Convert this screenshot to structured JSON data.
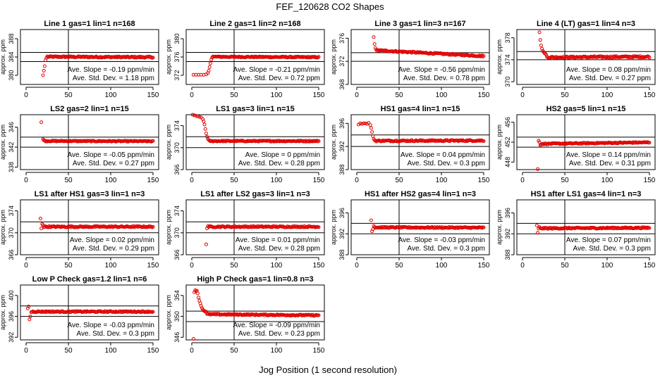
{
  "figure": {
    "title": "FEF_120628  CO2 Shapes",
    "xlabel": "Jog Position (1 second resolution)"
  },
  "chart_data": [
    {
      "type": "scatter",
      "title": "Line 1 gas=1 lin=1 n=168",
      "ylabel": "approx. ppm",
      "xlim": [
        0,
        150
      ],
      "ylim": [
        378,
        390
      ],
      "xticks": [
        0,
        50,
        100,
        150
      ],
      "yticks": [
        380,
        384,
        388
      ],
      "ref_lines_y": [
        385,
        383
      ],
      "ref_line_x": 50,
      "slope_text": "Ave. Slope =  -0.19  ppm/min",
      "std_text": "Ave. Std. Dev. =  1.18  ppm",
      "shape": {
        "x_start": 20,
        "x_end": 150,
        "level": 384,
        "transient": [
          [
            20,
            380
          ],
          [
            21,
            381
          ],
          [
            22,
            382
          ],
          [
            23,
            383.3
          ],
          [
            24,
            383.8
          ],
          [
            25,
            384.1
          ]
        ],
        "drift": -0.1,
        "noise": 0.15,
        "step": 1
      }
    },
    {
      "type": "scatter",
      "title": "Line 2 gas=1 lin=2 n=168",
      "ylabel": "approx. ppm",
      "xlim": [
        0,
        150
      ],
      "ylim": [
        370,
        382
      ],
      "xticks": [
        0,
        50,
        100,
        150
      ],
      "yticks": [
        372,
        376,
        380
      ],
      "ref_lines_y": [
        377,
        375
      ],
      "ref_line_x": 50,
      "slope_text": "Ave. Slope =  -0.21  ppm/min",
      "std_text": "Ave. Std. Dev. =  0.72  ppm",
      "shape": {
        "x_start": 2,
        "x_end": 150,
        "level": 376,
        "transient": [
          [
            2,
            372.1
          ],
          [
            5,
            372.1
          ],
          [
            8,
            372.1
          ],
          [
            11,
            372.1
          ],
          [
            14,
            372.1
          ],
          [
            17,
            372.2
          ],
          [
            19,
            372.5
          ],
          [
            20,
            373
          ],
          [
            21,
            373.8
          ],
          [
            22,
            374.6
          ],
          [
            23,
            375.4
          ],
          [
            24,
            375.9
          ],
          [
            25,
            376.1
          ]
        ],
        "drift": -0.1,
        "noise": 0.12,
        "step": 1
      }
    },
    {
      "type": "scatter",
      "title": "Line 3 gas=1 lin=3 n=167",
      "ylabel": "approx. ppm",
      "xlim": [
        0,
        150
      ],
      "ylim": [
        368,
        377.5
      ],
      "xticks": [
        0,
        50,
        100,
        150
      ],
      "yticks": [
        368,
        372,
        376
      ],
      "ref_lines_y": [
        373.5,
        372
      ],
      "ref_line_x": 50,
      "slope_text": "Ave. Slope =  -0.56  ppm/min",
      "std_text": "Ave. Std. Dev. =  0.78  ppm",
      "shape": {
        "x_start": 20,
        "x_end": 150,
        "level": 373.4,
        "transient": [
          [
            20,
            376.2
          ],
          [
            21,
            375
          ],
          [
            22,
            374.3
          ],
          [
            23,
            374
          ],
          [
            24,
            373.8
          ]
        ],
        "drift": -1.0,
        "noise": 0.12,
        "step": 1
      }
    },
    {
      "type": "scatter",
      "title": "Line 4 (LT) gas=1 lin=4 n=3",
      "ylabel": "approx. ppm",
      "xlim": [
        0,
        150
      ],
      "ylim": [
        369.5,
        379.5
      ],
      "xticks": [
        0,
        50,
        100,
        150
      ],
      "yticks": [
        370,
        374,
        378
      ],
      "ref_lines_y": [
        375.5,
        374
      ],
      "ref_line_x": 50,
      "slope_text": "Ave. Slope =  0.08  ppm/min",
      "std_text": "Ave. Std. Dev. =  0.27  ppm",
      "shape": {
        "x_start": 20,
        "x_end": 150,
        "level": 374.5,
        "transient": [
          [
            20,
            379
          ],
          [
            21,
            377.6
          ],
          [
            22,
            376.6
          ],
          [
            23,
            376
          ],
          [
            24,
            375.6
          ],
          [
            25,
            375.4
          ],
          [
            26,
            375.2
          ],
          [
            27,
            375.1
          ],
          [
            28,
            374.9
          ]
        ],
        "drift": 0.1,
        "noise": 0.15,
        "step": 1
      }
    },
    {
      "type": "scatter",
      "title": "LS2 gas=2 lin=1 n=15",
      "ylabel": "approx. ppm",
      "xlim": [
        0,
        150
      ],
      "ylim": [
        337.5,
        348.5
      ],
      "xticks": [
        0,
        50,
        100,
        150
      ],
      "yticks": [
        338,
        342,
        346
      ],
      "ref_lines_y": [
        344,
        342
      ],
      "ref_line_x": 50,
      "slope_text": "Ave. Slope =  -0.05  ppm/min",
      "std_text": "Ave. Std. Dev. =  0.27  ppm",
      "shape": {
        "x_start": 18,
        "x_end": 150,
        "level": 343.2,
        "transient": [
          [
            18,
            347
          ],
          [
            20,
            343.6
          ],
          [
            21,
            343.4
          ]
        ],
        "drift": -0.05,
        "noise": 0.1,
        "step": 1
      }
    },
    {
      "type": "scatter",
      "title": "LS1 gas=3 lin=1 n=15",
      "ylabel": "approx. ppm",
      "xlim": [
        0,
        150
      ],
      "ylim": [
        366,
        376
      ],
      "xticks": [
        0,
        50,
        100,
        150
      ],
      "yticks": [
        366,
        370,
        374
      ],
      "ref_lines_y": [
        372,
        370
      ],
      "ref_line_x": 50,
      "slope_text": "Ave. Slope =  0",
      "std_text": "Ave. Std. Dev. =  0.28  ppm",
      "shape": {
        "x_start": 1,
        "x_end": 150,
        "level": 371.2,
        "transient": [
          [
            1,
            376
          ],
          [
            3,
            375.9
          ],
          [
            5,
            375.8
          ],
          [
            7,
            375.7
          ],
          [
            9,
            375.6
          ],
          [
            11,
            375.5
          ],
          [
            13,
            375.2
          ],
          [
            14,
            374.8
          ],
          [
            15,
            374.2
          ],
          [
            16,
            373.4
          ],
          [
            17,
            372.6
          ],
          [
            18,
            372
          ],
          [
            19,
            371.6
          ],
          [
            20,
            371.4
          ]
        ],
        "drift": 0,
        "noise": 0.1,
        "step": 1
      }
    },
    {
      "type": "scatter",
      "title": "HS1 gas=4 lin=1 n=15",
      "ylabel": "approx. ppm",
      "xlim": [
        0,
        150
      ],
      "ylim": [
        388,
        397.5
      ],
      "xticks": [
        0,
        50,
        100,
        150
      ],
      "yticks": [
        388,
        392,
        396
      ],
      "ref_lines_y": [
        394,
        392
      ],
      "ref_line_x": 50,
      "slope_text": "Ave. Slope =  0.04  ppm/min",
      "std_text": "Ave. Std. Dev. =  0.3  ppm",
      "shape": {
        "x_start": 2,
        "x_end": 150,
        "level": 393,
        "transient": [
          [
            2,
            395.8
          ],
          [
            4,
            396
          ],
          [
            6,
            395.9
          ],
          [
            8,
            396
          ],
          [
            10,
            396
          ],
          [
            12,
            395.9
          ],
          [
            14,
            396.1
          ],
          [
            16,
            395.7
          ],
          [
            17,
            395.2
          ],
          [
            18,
            394.5
          ],
          [
            19,
            393.8
          ],
          [
            20,
            393.3
          ],
          [
            21,
            393.1
          ]
        ],
        "drift": 0.05,
        "noise": 0.12,
        "step": 1
      }
    },
    {
      "type": "scatter",
      "title": "HS2 gas=5 lin=1 n=15",
      "ylabel": "approx. ppm",
      "xlim": [
        0,
        150
      ],
      "ylim": [
        446.5,
        457.5
      ],
      "xticks": [
        0,
        50,
        100,
        150
      ],
      "yticks": [
        448,
        452,
        456
      ],
      "ref_lines_y": [
        453,
        451
      ],
      "ref_line_x": 50,
      "slope_text": "Ave. Slope =  0.14  ppm/min",
      "std_text": "Ave. Std. Dev. =  0.31  ppm",
      "shape": {
        "x_start": 18,
        "x_end": 150,
        "level": 451.8,
        "transient": [
          [
            18,
            446.6
          ],
          [
            19,
            452.3
          ],
          [
            20,
            452
          ],
          [
            21,
            451.4
          ],
          [
            22,
            451.5
          ]
        ],
        "drift": 0.3,
        "noise": 0.12,
        "step": 1
      }
    },
    {
      "type": "scatter",
      "title": "LS1 after HS1 gas=3 lin=1 n=3",
      "ylabel": "approx. ppm",
      "xlim": [
        0,
        150
      ],
      "ylim": [
        366,
        376
      ],
      "xticks": [
        0,
        50,
        100,
        150
      ],
      "yticks": [
        366,
        370,
        374
      ],
      "ref_lines_y": [
        372,
        370
      ],
      "ref_line_x": 50,
      "slope_text": "Ave. Slope =  0.02  ppm/min",
      "std_text": "Ave. Std. Dev. =  0.29  ppm",
      "shape": {
        "x_start": 17,
        "x_end": 150,
        "level": 371.1,
        "transient": [
          [
            17,
            372.6
          ],
          [
            18,
            370.8
          ],
          [
            19,
            371.6
          ],
          [
            20,
            371.4
          ]
        ],
        "drift": 0,
        "noise": 0.12,
        "step": 1
      }
    },
    {
      "type": "scatter",
      "title": "LS1 after LS2 gas=3 lin=1 n=3",
      "ylabel": "approx. ppm",
      "xlim": [
        0,
        150
      ],
      "ylim": [
        366,
        376
      ],
      "xticks": [
        0,
        50,
        100,
        150
      ],
      "yticks": [
        366,
        370,
        374
      ],
      "ref_lines_y": [
        372,
        370
      ],
      "ref_line_x": 50,
      "slope_text": "Ave. Slope =  0.01  ppm/min",
      "std_text": "Ave. Std. Dev. =  0.28  ppm",
      "shape": {
        "x_start": 17,
        "x_end": 150,
        "level": 371.1,
        "transient": [
          [
            17,
            367.9
          ],
          [
            18,
            370.8
          ],
          [
            19,
            371.2
          ]
        ],
        "drift": 0,
        "noise": 0.12,
        "step": 1
      }
    },
    {
      "type": "scatter",
      "title": "HS1 after HS2 gas=4 lin=1 n=3",
      "ylabel": "approx. ppm",
      "xlim": [
        0,
        150
      ],
      "ylim": [
        388,
        398.5
      ],
      "xticks": [
        0,
        50,
        100,
        150
      ],
      "yticks": [
        388,
        392,
        396
      ],
      "ref_lines_y": [
        394,
        392
      ],
      "ref_line_x": 50,
      "slope_text": "Ave. Slope =  -0.03  ppm/min",
      "std_text": "Ave. Std. Dev. =  0.3  ppm",
      "shape": {
        "x_start": 17,
        "x_end": 150,
        "level": 393.2,
        "transient": [
          [
            17,
            394.6
          ],
          [
            18,
            392.5
          ],
          [
            19,
            392.9
          ],
          [
            20,
            393.5
          ],
          [
            21,
            393.3
          ]
        ],
        "drift": -0.05,
        "noise": 0.12,
        "step": 1
      }
    },
    {
      "type": "scatter",
      "title": "HS1 after LS1 gas=4 lin=1 n=3",
      "ylabel": "approx. ppm",
      "xlim": [
        0,
        150
      ],
      "ylim": [
        388,
        398.5
      ],
      "xticks": [
        0,
        50,
        100,
        150
      ],
      "yticks": [
        388,
        392,
        396
      ],
      "ref_lines_y": [
        394,
        392
      ],
      "ref_line_x": 50,
      "slope_text": "Ave. Slope =  0.07  ppm/min",
      "std_text": "Ave. Std. Dev. =  0.3  ppm",
      "shape": {
        "x_start": 17,
        "x_end": 150,
        "level": 393.1,
        "transient": [
          [
            17,
            393.6
          ],
          [
            18,
            392.2
          ],
          [
            19,
            393
          ],
          [
            20,
            393.3
          ]
        ],
        "drift": 0.1,
        "noise": 0.12,
        "step": 1
      }
    },
    {
      "type": "scatter",
      "title": "Low P Check gas=1.2 lin=1 n=6",
      "ylabel": "approx. ppm",
      "xlim": [
        0,
        150
      ],
      "ylim": [
        391.5,
        402
      ],
      "xticks": [
        0,
        50,
        100,
        150
      ],
      "yticks": [
        392,
        396,
        400
      ],
      "ref_lines_y": [
        398,
        396
      ],
      "ref_line_x": 50,
      "slope_text": "Ave. Slope =  -0.03  ppm/min",
      "std_text": "Ave. Std. Dev. =  0.3  ppm",
      "shape": {
        "x_start": 2,
        "x_end": 150,
        "level": 396.9,
        "transient": [
          [
            2,
            397.5
          ],
          [
            3,
            397.9
          ],
          [
            4,
            395.4
          ],
          [
            5,
            396
          ],
          [
            6,
            396.8
          ]
        ],
        "drift": 0,
        "noise": 0.12,
        "step": 1
      }
    },
    {
      "type": "scatter",
      "title": "High P Check gas=1 lin=0.8 n=3",
      "ylabel": "approx. ppm",
      "xlim": [
        0,
        150
      ],
      "ylim": [
        345.5,
        356
      ],
      "xticks": [
        0,
        50,
        100,
        150
      ],
      "yticks": [
        346,
        350,
        354
      ],
      "ref_lines_y": [
        351,
        349
      ],
      "ref_line_x": 50,
      "slope_text": "Ave. Slope =  -0.09  ppm/min",
      "std_text": "Ave. Std. Dev. =  0.23  ppm",
      "shape": {
        "x_start": 2,
        "x_end": 150,
        "level": 350.3,
        "transient": [
          [
            2,
            345.7
          ],
          [
            3,
            354.6
          ],
          [
            4,
            355
          ],
          [
            5,
            354.8
          ],
          [
            6,
            354.9
          ],
          [
            7,
            354.4
          ],
          [
            8,
            353.6
          ],
          [
            9,
            353
          ],
          [
            10,
            352.5
          ],
          [
            11,
            352
          ],
          [
            12,
            351.6
          ],
          [
            13,
            351.3
          ],
          [
            14,
            351.1
          ],
          [
            15,
            351
          ],
          [
            16,
            350.9
          ],
          [
            17,
            350.9
          ]
        ],
        "drift": -0.2,
        "noise": 0.12,
        "step": 1
      }
    }
  ]
}
